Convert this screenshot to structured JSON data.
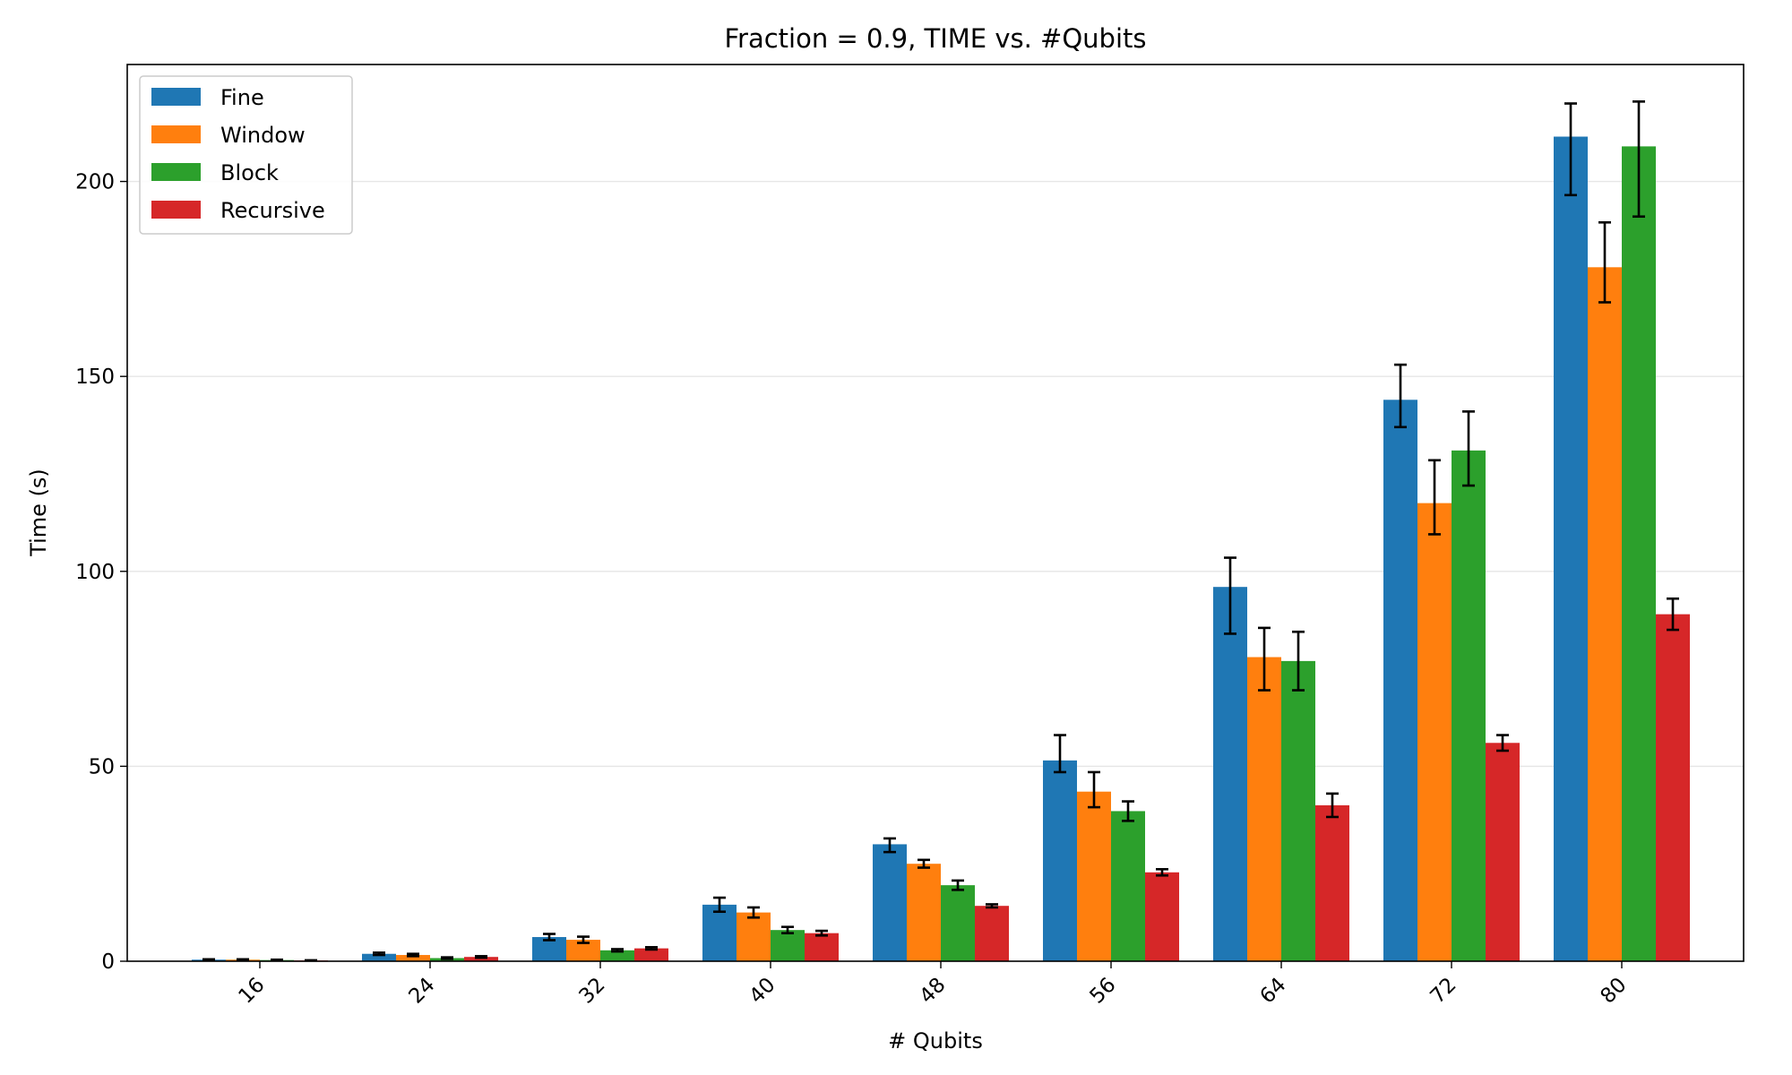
{
  "chart_data": {
    "type": "bar",
    "title": "Fraction = 0.9, TIME vs. #Qubits",
    "xlabel": "# Qubits",
    "ylabel": "Time (s)",
    "categories": [
      "16",
      "24",
      "32",
      "40",
      "48",
      "56",
      "64",
      "72",
      "80"
    ],
    "ylim": [
      0,
      230
    ],
    "yticks": [
      0,
      50,
      100,
      150,
      200
    ],
    "grid": "horizontal",
    "legend_position": "top-left",
    "series": [
      {
        "name": "Fine",
        "color": "#1f77b4",
        "values": [
          0.4,
          1.9,
          6.2,
          14.5,
          30.0,
          51.5,
          96.0,
          144.0,
          211.5
        ],
        "err_low": [
          0.1,
          0.3,
          0.8,
          1.8,
          2.0,
          3.0,
          12.0,
          7.0,
          15.0
        ],
        "err_high": [
          0.1,
          0.3,
          0.8,
          1.8,
          1.5,
          6.5,
          7.5,
          9.0,
          8.5
        ]
      },
      {
        "name": "Window",
        "color": "#ff7f0e",
        "values": [
          0.4,
          1.6,
          5.5,
          12.5,
          25.0,
          43.5,
          78.0,
          117.5,
          178.0
        ],
        "err_low": [
          0.1,
          0.3,
          0.8,
          1.3,
          1.0,
          4.0,
          8.5,
          8.0,
          9.0
        ],
        "err_high": [
          0.1,
          0.3,
          0.8,
          1.3,
          1.0,
          5.0,
          7.5,
          11.0,
          11.5
        ]
      },
      {
        "name": "Block",
        "color": "#2ca02c",
        "values": [
          0.3,
          0.8,
          2.8,
          8.0,
          19.5,
          38.5,
          77.0,
          131.0,
          209.0
        ],
        "err_low": [
          0.1,
          0.2,
          0.3,
          0.8,
          1.2,
          2.5,
          7.5,
          9.0,
          18.0
        ],
        "err_high": [
          0.1,
          0.2,
          0.3,
          0.8,
          1.2,
          2.5,
          7.5,
          10.0,
          11.5
        ]
      },
      {
        "name": "Recursive",
        "color": "#d62728",
        "values": [
          0.2,
          1.1,
          3.3,
          7.2,
          14.2,
          22.8,
          40.0,
          56.0,
          89.0
        ],
        "err_low": [
          0.05,
          0.2,
          0.3,
          0.6,
          0.4,
          0.8,
          3.0,
          2.0,
          4.0
        ],
        "err_high": [
          0.05,
          0.2,
          0.3,
          0.6,
          0.4,
          0.8,
          3.0,
          2.0,
          4.0
        ]
      }
    ]
  }
}
